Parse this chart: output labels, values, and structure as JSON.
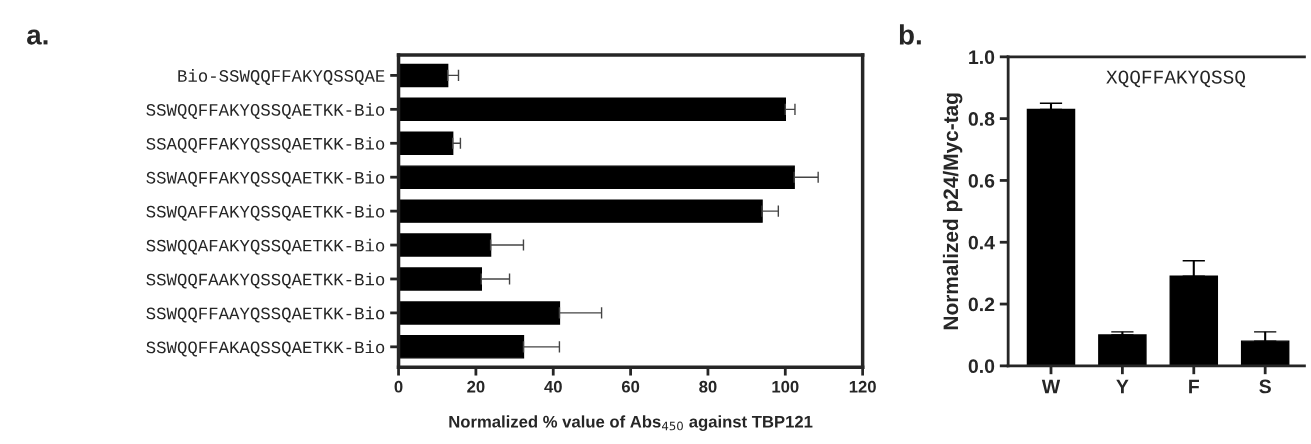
{
  "chart_data": [
    {
      "type": "bar",
      "title": "a.",
      "orientation": "horizontal",
      "xlabel": "Normalized % value of Abs$_{450}$ against TBP121",
      "categories": [
        "Bio-SSWQQFFAKYQSSQAE",
        "SSWQQFFAKYQSSQAETKK-Bio",
        "SSAQQFFAKYQSSQAETKK-Bio",
        "SSWAQFFAKYQSSQAETKK-Bio",
        "SSWQAFFAKYQSSQAETKK-Bio",
        "SSWQQAFAKYQSSQAETKK-Bio",
        "SSWQQFAAKYQSSQAETKK-Bio",
        "SSWQQFFAAYQSSQAETKK-Bio",
        "SSWQQFFAKAQSSQAETKK-Bio"
      ],
      "series": [
        {
          "color": "#000000",
          "values": [
            12.7,
            100,
            14,
            102.3,
            94,
            23.8,
            21.4,
            41.6,
            32.3
          ],
          "errors": [
            [
              12.7,
              15.5
            ],
            [
              100,
              102.5
            ],
            [
              14,
              16
            ],
            [
              102.3,
              108.5
            ],
            [
              94,
              98.2
            ],
            [
              23.8,
              32.3
            ],
            [
              21.4,
              28.7
            ],
            [
              41.6,
              52.5
            ],
            [
              32.3,
              41.6
            ]
          ]
        }
      ],
      "xlim": [
        0,
        120
      ],
      "xticks": [
        0,
        20,
        40,
        60,
        80,
        100,
        120
      ]
    },
    {
      "type": "bar",
      "title": "b.",
      "ylabel": "Normalized p24/Myc-tag",
      "annotations": [
        "XQQFFAKYQSSQ"
      ],
      "categories": [
        "W",
        "Y",
        "F",
        "S"
      ],
      "series": [
        {
          "color": "#000000",
          "values": [
            0.83,
            0.1,
            0.29,
            0.08
          ],
          "errors": [
            [
              0.83,
              0.85
            ],
            [
              0.1,
              0.11
            ],
            [
              0.29,
              0.34
            ],
            [
              0.08,
              0.11
            ]
          ]
        }
      ],
      "ylim": [
        0,
        1.0
      ],
      "yticks": [
        {
          "value": 0,
          "label": "0.0"
        },
        {
          "value": 0.2,
          "label": "0.2"
        },
        {
          "value": 0.4,
          "label": "0.4"
        },
        {
          "value": 0.6,
          "label": "0.6"
        },
        {
          "value": 0.8,
          "label": "0.8"
        },
        {
          "value": 1.0,
          "label": "1.0"
        }
      ]
    }
  ]
}
